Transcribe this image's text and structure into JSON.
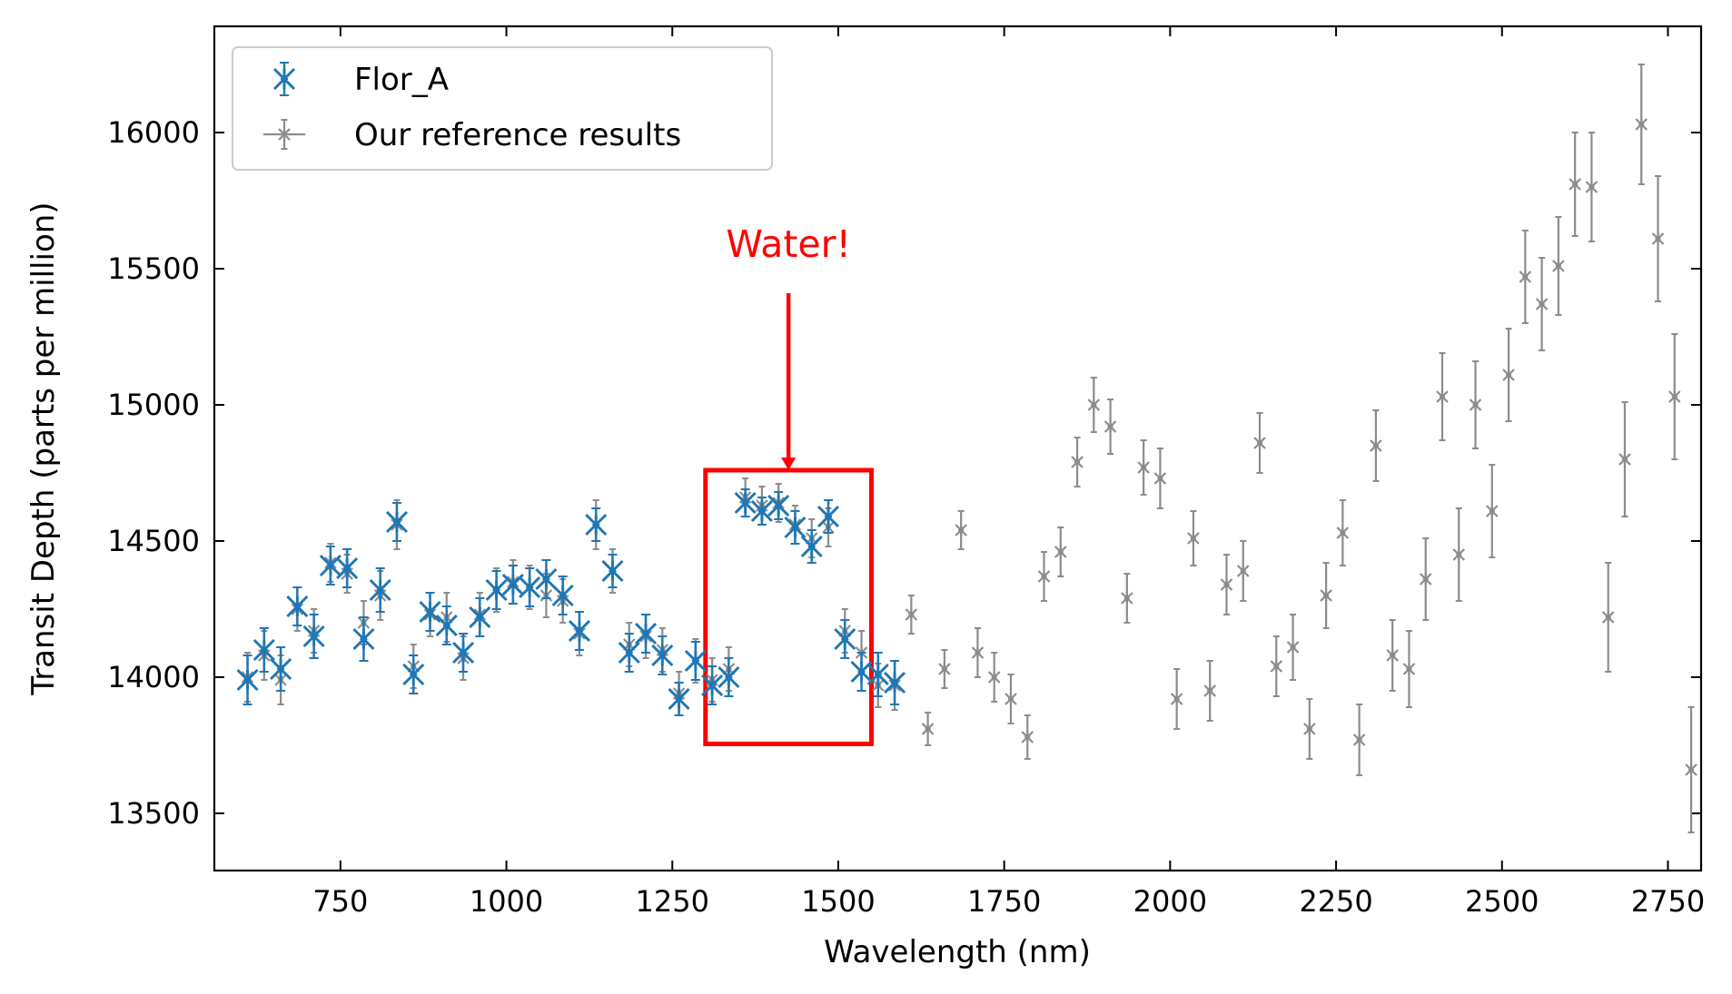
{
  "chart_data": {
    "type": "scatter",
    "title": "",
    "xlabel": "Wavelength (nm)",
    "ylabel": "Transit Depth (parts per million)",
    "xlim": [
      560,
      2800
    ],
    "ylim": [
      13290,
      16390
    ],
    "xticks": [
      750,
      1000,
      1250,
      1500,
      1750,
      2000,
      2250,
      2500,
      2750
    ],
    "yticks": [
      13500,
      14000,
      14500,
      15000,
      15500,
      16000
    ],
    "xtick_labels": [
      "750",
      "1000",
      "1250",
      "1500",
      "1750",
      "2000",
      "2250",
      "2500",
      "2750"
    ],
    "ytick_labels": [
      "13500",
      "14000",
      "14500",
      "15000",
      "15500",
      "16000"
    ],
    "grid": false,
    "legend_placement": "top-left",
    "annotation": {
      "text": "Water!",
      "color": "#ff0000",
      "arrow_from": [
        1425,
        15410
      ],
      "arrow_to": [
        1425,
        14760
      ],
      "box_x": [
        1300,
        1550
      ],
      "box_y": [
        13755,
        14760
      ]
    },
    "series": [
      {
        "name": "Our reference results",
        "color": "#8c8c8c",
        "marker": "x-small",
        "x": [
          610,
          635,
          660,
          685,
          710,
          735,
          760,
          785,
          810,
          835,
          860,
          885,
          910,
          935,
          960,
          985,
          1010,
          1035,
          1060,
          1085,
          1110,
          1135,
          1160,
          1185,
          1210,
          1235,
          1260,
          1285,
          1310,
          1335,
          1360,
          1385,
          1410,
          1435,
          1460,
          1485,
          1510,
          1535,
          1560,
          1585,
          1610,
          1635,
          1660,
          1685,
          1710,
          1735,
          1760,
          1785,
          1810,
          1835,
          1860,
          1885,
          1910,
          1935,
          1960,
          1985,
          2010,
          2035,
          2060,
          2085,
          2110,
          2135,
          2160,
          2185,
          2210,
          2235,
          2260,
          2285,
          2310,
          2335,
          2360,
          2385,
          2410,
          2435,
          2460,
          2485,
          2510,
          2535,
          2560,
          2585,
          2610,
          2635,
          2660,
          2685,
          2710,
          2735,
          2760,
          2785
        ],
        "y": [
          14000,
          14080,
          13990,
          14250,
          14170,
          14420,
          14380,
          14200,
          14300,
          14560,
          14040,
          14230,
          14220,
          14070,
          14230,
          14320,
          14350,
          14330,
          14300,
          14280,
          14160,
          14560,
          14390,
          14120,
          14150,
          14100,
          13940,
          14060,
          13990,
          14030,
          14660,
          14630,
          14640,
          14560,
          14510,
          14550,
          14170,
          14090,
          13970,
          13970,
          14230,
          13810,
          14030,
          14540,
          14090,
          14000,
          13920,
          13780,
          14370,
          14460,
          14790,
          15000,
          14920,
          14290,
          14770,
          14730,
          13920,
          14510,
          13950,
          14340,
          14390,
          14860,
          14040,
          14110,
          13810,
          14300,
          14530,
          13770,
          14850,
          14080,
          14030,
          14360,
          15030,
          14450,
          15000,
          14610,
          15110,
          15470,
          15370,
          15510,
          15810,
          15800,
          14220,
          14800,
          16030,
          15610,
          15030,
          13660
        ],
        "yerr": [
          90,
          90,
          90,
          80,
          80,
          70,
          70,
          80,
          90,
          90,
          80,
          80,
          90,
          80,
          80,
          80,
          80,
          80,
          80,
          80,
          80,
          90,
          80,
          80,
          80,
          80,
          80,
          80,
          80,
          80,
          70,
          70,
          70,
          70,
          70,
          70,
          80,
          80,
          80,
          90,
          70,
          60,
          70,
          70,
          90,
          90,
          90,
          80,
          90,
          90,
          90,
          100,
          100,
          90,
          100,
          110,
          110,
          100,
          110,
          110,
          110,
          110,
          110,
          120,
          110,
          120,
          120,
          130,
          130,
          130,
          140,
          150,
          160,
          170,
          160,
          170,
          170,
          170,
          170,
          180,
          190,
          200,
          200,
          210,
          220,
          230,
          230,
          230
        ]
      },
      {
        "name": "Flor_A",
        "color": "#1f77b4",
        "marker": "x-large",
        "x": [
          610,
          635,
          660,
          685,
          710,
          735,
          760,
          785,
          810,
          835,
          860,
          885,
          910,
          935,
          960,
          985,
          1010,
          1035,
          1060,
          1085,
          1110,
          1135,
          1160,
          1185,
          1210,
          1235,
          1260,
          1285,
          1310,
          1335,
          1360,
          1385,
          1410,
          1435,
          1460,
          1485,
          1510,
          1535,
          1560,
          1585
        ],
        "y": [
          13990,
          14100,
          14030,
          14260,
          14150,
          14410,
          14400,
          14140,
          14320,
          14570,
          14010,
          14240,
          14190,
          14090,
          14220,
          14320,
          14340,
          14330,
          14360,
          14300,
          14170,
          14560,
          14390,
          14090,
          14160,
          14080,
          13920,
          14060,
          13970,
          14000,
          14640,
          14610,
          14630,
          14550,
          14480,
          14590,
          14140,
          14020,
          14010,
          13980
        ],
        "yerr": [
          90,
          80,
          80,
          70,
          80,
          70,
          70,
          80,
          80,
          70,
          70,
          70,
          70,
          70,
          70,
          70,
          70,
          70,
          70,
          70,
          70,
          60,
          60,
          70,
          70,
          70,
          60,
          70,
          70,
          70,
          50,
          50,
          50,
          60,
          60,
          60,
          70,
          70,
          80,
          80
        ]
      }
    ]
  }
}
